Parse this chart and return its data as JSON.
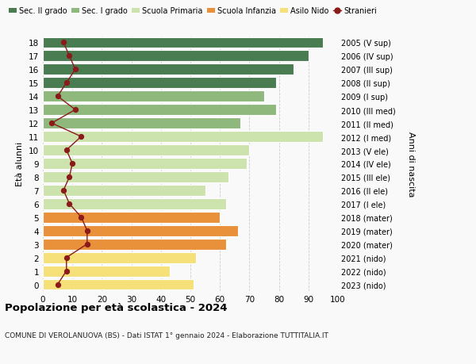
{
  "ages": [
    0,
    1,
    2,
    3,
    4,
    5,
    6,
    7,
    8,
    9,
    10,
    11,
    12,
    13,
    14,
    15,
    16,
    17,
    18
  ],
  "bar_values": [
    51,
    43,
    52,
    62,
    66,
    60,
    62,
    55,
    63,
    69,
    70,
    95,
    67,
    79,
    75,
    79,
    85,
    90,
    95
  ],
  "color_map": {
    "0": "#f5e07a",
    "1": "#f5e07a",
    "2": "#f5e07a",
    "3": "#e8913a",
    "4": "#e8913a",
    "5": "#e8913a",
    "6": "#cde3ad",
    "7": "#cde3ad",
    "8": "#cde3ad",
    "9": "#cde3ad",
    "10": "#cde3ad",
    "11": "#cde3ad",
    "12": "#8eb87c",
    "13": "#8eb87c",
    "14": "#8eb87c",
    "15": "#4a7c52",
    "16": "#4a7c52",
    "17": "#4a7c52",
    "18": "#4a7c52"
  },
  "stranieri_values": [
    5,
    8,
    8,
    15,
    15,
    13,
    9,
    7,
    9,
    10,
    8,
    13,
    3,
    11,
    5,
    8,
    11,
    9,
    7
  ],
  "right_labels": [
    "2023 (nido)",
    "2022 (nido)",
    "2021 (nido)",
    "2020 (mater)",
    "2019 (mater)",
    "2018 (mater)",
    "2017 (I ele)",
    "2016 (II ele)",
    "2015 (III ele)",
    "2014 (IV ele)",
    "2013 (V ele)",
    "2012 (I med)",
    "2011 (II med)",
    "2010 (III med)",
    "2009 (I sup)",
    "2008 (II sup)",
    "2007 (III sup)",
    "2006 (IV sup)",
    "2005 (V sup)"
  ],
  "legend_labels": [
    "Sec. II grado",
    "Sec. I grado",
    "Scuola Primaria",
    "Scuola Infanzia",
    "Asilo Nido",
    "Stranieri"
  ],
  "legend_colors": [
    "#4a7c52",
    "#8eb87c",
    "#cde3ad",
    "#e8913a",
    "#f5e07a",
    "#8b1a1a"
  ],
  "ylabel": "Età alunni",
  "right_ylabel": "Anni di nascita",
  "title": "Popolazione per età scolastica - 2024",
  "subtitle": "COMUNE DI VEROLANUOVA (BS) - Dati ISTAT 1° gennaio 2024 - Elaborazione TUTTITALIA.IT",
  "xlim": [
    0,
    100
  ],
  "background_color": "#f9f9f9",
  "grid_color": "#cccccc"
}
